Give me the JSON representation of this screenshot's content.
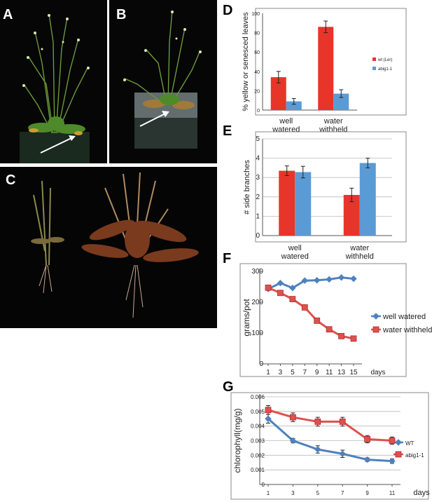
{
  "panels": {
    "A": {
      "letter": "A"
    },
    "B": {
      "letter": "B"
    },
    "C": {
      "letter": "C"
    },
    "D": {
      "letter": "D"
    },
    "E": {
      "letter": "E"
    },
    "F": {
      "letter": "F"
    },
    "G": {
      "letter": "G"
    }
  },
  "chart_data": [
    {
      "id": "D",
      "type": "bar",
      "ylabel": "% yellow or senesced leaves",
      "xlabel": "",
      "categories": [
        [
          "well",
          "watered"
        ],
        [
          "water",
          "withheld"
        ]
      ],
      "series": [
        {
          "name": "wt (Ler)",
          "color": "#e8352a",
          "values": [
            34,
            86
          ],
          "errors": [
            6,
            6
          ]
        },
        {
          "name": "abig1-1",
          "color": "#5b9bd5",
          "values": [
            9,
            17
          ],
          "errors": [
            3,
            4
          ]
        }
      ],
      "ylim": [
        0,
        100
      ],
      "yticks": [
        0,
        20,
        40,
        60,
        80,
        100
      ],
      "legend": "right",
      "grid": false
    },
    {
      "id": "E",
      "type": "bar",
      "ylabel": "# side branches",
      "xlabel": "",
      "categories": [
        [
          "well",
          "watered"
        ],
        [
          "water",
          "withheld"
        ]
      ],
      "series": [
        {
          "name": "",
          "color": "#e8352a",
          "values": [
            3.35,
            2.1
          ],
          "errors": [
            0.25,
            0.35
          ]
        },
        {
          "name": "",
          "color": "#5b9bd5",
          "values": [
            3.28,
            3.75
          ],
          "errors": [
            0.3,
            0.25
          ]
        }
      ],
      "ylim": [
        0,
        5
      ],
      "yticks": [
        0,
        1,
        2,
        3,
        4,
        5
      ],
      "legend": "none",
      "grid": true
    },
    {
      "id": "F",
      "type": "line",
      "ylabel": "grams/pot",
      "xlabel": "days",
      "x": [
        1,
        3,
        5,
        7,
        9,
        11,
        13,
        15
      ],
      "series": [
        {
          "name": "well watered",
          "color": "#4f81bd",
          "marker": "diamond",
          "values": [
            243,
            262,
            246,
            270,
            271,
            274,
            280,
            276
          ]
        },
        {
          "name": "water withheld",
          "color": "#e0504d",
          "marker": "square",
          "values": [
            247,
            230,
            210,
            183,
            140,
            112,
            90,
            82
          ]
        }
      ],
      "ylim": [
        0,
        300
      ],
      "yticks": [
        0,
        100,
        200,
        300
      ],
      "legend": "right",
      "grid": false
    },
    {
      "id": "G",
      "type": "line",
      "ylabel": "chlorophyll(mg/g)",
      "xlabel": "days",
      "x": [
        1,
        3,
        5,
        7,
        9,
        11
      ],
      "series": [
        {
          "name": "WT",
          "color": "#4f81bd",
          "marker": "diamond",
          "values": [
            0.0045,
            0.003,
            0.0024,
            0.0021,
            0.0017,
            0.0016
          ],
          "errors": [
            0.0003,
            0.00015,
            0.00025,
            0.00025,
            0.00012,
            0.00015
          ]
        },
        {
          "name": "abig1-1",
          "color": "#e0504d",
          "marker": "square",
          "values": [
            0.0051,
            0.0046,
            0.0043,
            0.0043,
            0.0031,
            0.003
          ],
          "errors": [
            0.0003,
            0.0003,
            0.0003,
            0.0003,
            0.00025,
            0.00025
          ]
        }
      ],
      "ylim": [
        0,
        0.006
      ],
      "yticks": [
        "0",
        "0.001",
        "0.002",
        "0.003",
        "0.004",
        "0.005",
        "0.006"
      ],
      "legend": "right",
      "grid": true
    }
  ]
}
